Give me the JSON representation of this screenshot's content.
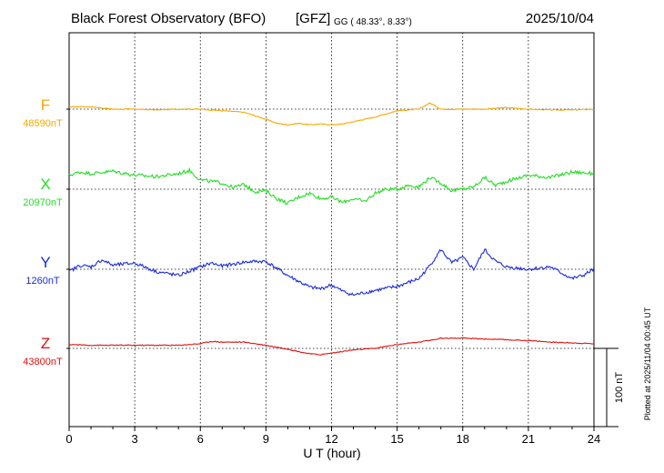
{
  "header": {
    "station": "Black Forest Observatory (BFO)",
    "institute": "[GFZ]",
    "coords": "GG ( 48.33°,   8.33°)",
    "date": "2025/10/04"
  },
  "footer_note": "Plotted at 2025/11/04 00:45 UT",
  "scale_bar_label": "100 nT",
  "chart_data": {
    "type": "line",
    "xlabel": "U T (hour)",
    "xlim": [
      0,
      24
    ],
    "x_ticks": [
      "0",
      "3",
      "6",
      "9",
      "12",
      "15",
      "18",
      "21",
      "24"
    ],
    "grid": true,
    "scale_bar_nT": 100,
    "series": [
      {
        "name": "F",
        "baseline": "48590nT",
        "baseline_nT": 48590,
        "color": "#f5a800",
        "x": [
          0,
          1,
          2,
          3,
          4,
          5,
          6,
          7,
          8,
          9,
          9.5,
          10,
          10.5,
          11,
          11.5,
          12,
          12.5,
          13,
          13.5,
          14,
          15,
          16,
          16.5,
          17,
          17.5,
          18,
          19,
          20,
          21,
          22,
          23,
          24
        ],
        "values": [
          3,
          3,
          0,
          0,
          -1,
          0,
          0,
          -2,
          -4,
          -13,
          -18,
          -20,
          -18,
          -20,
          -19,
          -20,
          -19,
          -16,
          -13,
          -10,
          -2,
          0,
          8,
          0,
          0,
          0,
          0,
          2,
          0,
          -1,
          -1,
          0
        ]
      },
      {
        "name": "X",
        "baseline": "20970nT",
        "baseline_nT": 20970,
        "color": "#22dd22",
        "x": [
          0,
          0.5,
          1,
          2,
          3,
          4,
          5,
          5.5,
          6,
          7,
          7.5,
          8,
          8.5,
          9,
          9.5,
          10,
          10.5,
          11,
          11.5,
          12,
          12.5,
          13,
          13.5,
          14,
          14.5,
          15,
          15.5,
          16,
          16.5,
          17,
          17.5,
          18,
          18.5,
          19,
          19.5,
          20,
          21,
          22,
          23,
          24
        ],
        "values": [
          18,
          22,
          20,
          23,
          18,
          16,
          20,
          24,
          12,
          8,
          2,
          6,
          -3,
          -2,
          -12,
          -18,
          -10,
          -5,
          -12,
          -10,
          -17,
          -12,
          -16,
          -5,
          0,
          0,
          5,
          3,
          15,
          8,
          -2,
          0,
          3,
          15,
          5,
          10,
          18,
          15,
          22,
          20
        ]
      },
      {
        "name": "Y",
        "baseline": "1260nT",
        "baseline_nT": 1260,
        "color": "#1a2bd8",
        "x": [
          0,
          0.5,
          1,
          1.5,
          2,
          3,
          4,
          5,
          6,
          6.5,
          7,
          8,
          8.5,
          9,
          10,
          11,
          11.5,
          12,
          12.5,
          13,
          13.5,
          14,
          15,
          16,
          16.5,
          17,
          17.5,
          18,
          18.5,
          19,
          19.5,
          20,
          21,
          22,
          23,
          23.5,
          24
        ],
        "values": [
          -3,
          5,
          3,
          12,
          5,
          8,
          -3,
          -8,
          3,
          8,
          4,
          9,
          10,
          10,
          -8,
          -23,
          -25,
          -20,
          -28,
          -33,
          -30,
          -27,
          -22,
          -12,
          5,
          25,
          8,
          15,
          0,
          25,
          10,
          3,
          0,
          3,
          -12,
          -8,
          0
        ]
      },
      {
        "name": "Z",
        "baseline": "43800nT",
        "baseline_nT": 43800,
        "color": "#e01010",
        "x": [
          0,
          1,
          2,
          3,
          4,
          5,
          6,
          6.5,
          7,
          8,
          9,
          10,
          10.5,
          11,
          11.5,
          12,
          12.5,
          13,
          14,
          15,
          16,
          17,
          18,
          19,
          20,
          21,
          22,
          23,
          24
        ],
        "values": [
          5,
          4,
          4,
          4,
          4,
          4,
          6,
          9,
          8,
          8,
          4,
          -1,
          -4,
          -7,
          -8,
          -6,
          -4,
          -2,
          0,
          5,
          8,
          13,
          13,
          12,
          11,
          10,
          8,
          7,
          6
        ]
      }
    ]
  }
}
